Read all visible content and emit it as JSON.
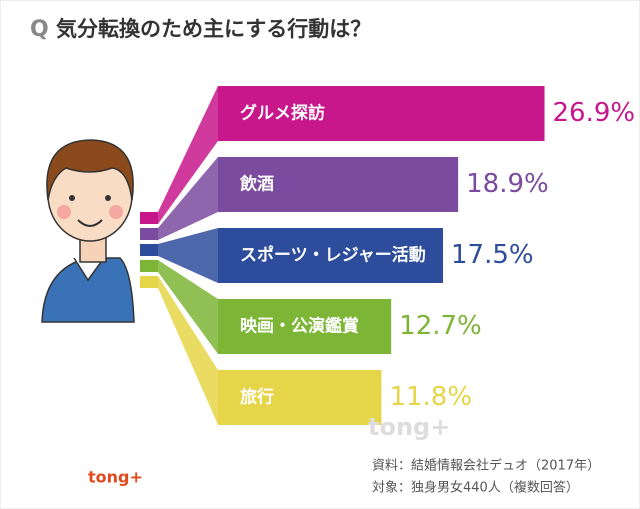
{
  "chart_data": {
    "type": "bar",
    "title_marker": "Q",
    "title": "気分転換のため主にする行動は？",
    "categories": [
      "グルメ探訪",
      "飲酒",
      "スポーツ・レジャー活動",
      "映画・公演鑑賞",
      "旅行"
    ],
    "values": [
      26.9,
      18.9,
      17.5,
      12.7,
      11.8
    ],
    "value_labels": [
      "26.9%",
      "18.9%",
      "17.5%",
      "12.7%",
      "11.8%"
    ],
    "colors": [
      "#c8178b",
      "#7a4b9f",
      "#2d4c9b",
      "#7db536",
      "#e6d548"
    ],
    "source": "資料：結婚情報会社デュオ（2017年）",
    "sample": "対象：独身男女440人（複数回答）",
    "logo": "tong+"
  }
}
